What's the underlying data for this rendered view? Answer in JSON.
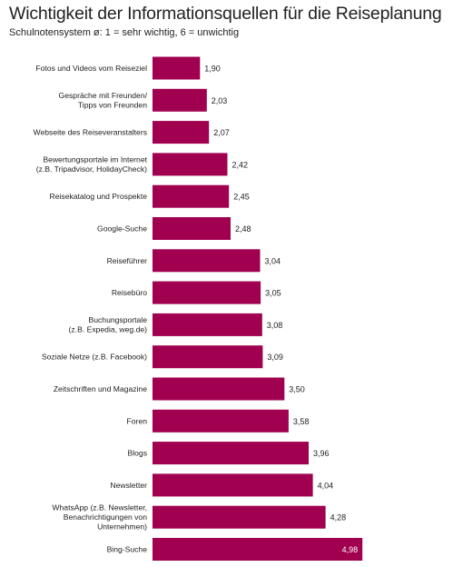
{
  "chart_data": {
    "type": "bar",
    "orientation": "horizontal",
    "title": "Wichtigkeit der Informationsquellen für die Reiseplanung",
    "subtitle": "Schulnotensystem ø: 1 = sehr wichtig, 6 = unwichtig",
    "xlim": [
      0,
      6
    ],
    "grid": false,
    "legend": "none",
    "bar_color": "#a0004f",
    "categories": [
      [
        "Fotos und Videos vom Reiseziel"
      ],
      [
        "Gespräche mit Freunden/",
        "Tipps von Freunden"
      ],
      [
        "Webseite des Reiseveranstalters"
      ],
      [
        "Bewertungsportale im Internet",
        "(z.B. Tripadvisor, HolidayCheck)"
      ],
      [
        "Reisekatalog und Prospekte"
      ],
      [
        "Google-Suche"
      ],
      [
        "Reiseführer"
      ],
      [
        "Reisebüro"
      ],
      [
        "Buchungsportale",
        "(z.B. Expedia, weg.de)"
      ],
      [
        "Soziale Netze (z.B. Facebook)"
      ],
      [
        "Zeitschriften und Magazine"
      ],
      [
        "Foren"
      ],
      [
        "Blogs"
      ],
      [
        "Newsletter"
      ],
      [
        "WhatsApp (z.B. Newsletter,",
        "Benachrichtigungen von",
        "Unternehmen)"
      ],
      [
        "Bing-Suche"
      ]
    ],
    "values": [
      1.9,
      2.03,
      2.07,
      2.42,
      2.45,
      2.48,
      3.04,
      3.05,
      3.08,
      3.09,
      3.5,
      3.58,
      3.96,
      4.04,
      4.28,
      4.98
    ],
    "value_labels": [
      "1,90",
      "2,03",
      "2,07",
      "2,42",
      "2,45",
      "2,48",
      "3,04",
      "3,05",
      "3,08",
      "3,09",
      "3,50",
      "3,58",
      "3,96",
      "4,04",
      "4,28",
      "4,98"
    ]
  }
}
